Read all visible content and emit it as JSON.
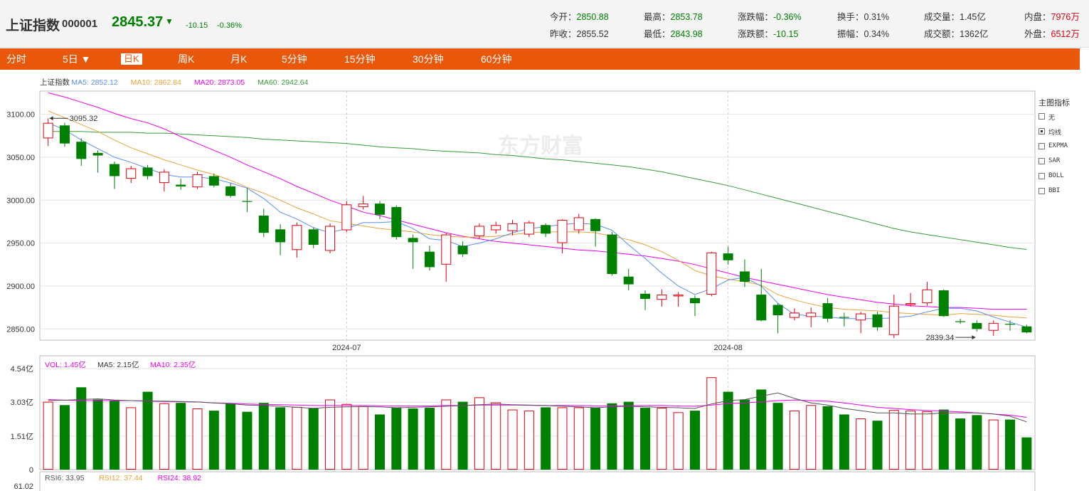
{
  "header": {
    "name": "上证指数",
    "code": "000001",
    "price": "2845.37",
    "arrow": "▼",
    "change": "-10.15",
    "change_pct": "-0.36%",
    "stats": [
      {
        "label": "今开：",
        "value": "2850.88",
        "color": "green"
      },
      {
        "label": "最高：",
        "value": "2853.78",
        "color": "green"
      },
      {
        "label": "涨跌幅：",
        "value": "-0.36%",
        "color": "green"
      },
      {
        "label": "换手：",
        "value": "0.31%",
        "color": "normal"
      },
      {
        "label": "成交量：",
        "value": "1.45亿",
        "color": "normal"
      },
      {
        "label": "内盘：",
        "value": "7976万",
        "color": "red"
      },
      {
        "label": "昨收：",
        "value": "2855.52",
        "color": "normal"
      },
      {
        "label": "最低：",
        "value": "2843.98",
        "color": "green"
      },
      {
        "label": "涨跌额：",
        "value": "-10.15",
        "color": "green"
      },
      {
        "label": "振幅：",
        "value": "0.34%",
        "color": "normal"
      },
      {
        "label": "成交额：",
        "value": "1362亿",
        "color": "normal"
      },
      {
        "label": "外盘：",
        "value": "6512万",
        "color": "red"
      }
    ]
  },
  "tabs": [
    "分时",
    "5日 ▼",
    "日K",
    "周K",
    "月K",
    "5分钟",
    "15分钟",
    "30分钟",
    "60分钟"
  ],
  "active_tab": "日K",
  "indicator_panel": {
    "title": "主图指标",
    "items": [
      {
        "label": "无",
        "checked": false
      },
      {
        "label": "均线",
        "checked": true
      },
      {
        "label": "EXPMA",
        "checked": false
      },
      {
        "label": "SAR",
        "checked": false
      },
      {
        "label": "BOLL",
        "checked": false
      },
      {
        "label": "BBI",
        "checked": false
      }
    ]
  },
  "watermark": "东方财富",
  "colors": {
    "up": "#e0000f",
    "down": "#008000",
    "ma5": "#5b8ff0",
    "ma10": "#e8a33a",
    "ma20": "#f000f0",
    "ma60": "#3a9a3a",
    "tab_bar": "#e8570a",
    "vol_ma5": "#555555"
  },
  "chart_data": [
    {
      "type": "candlestick",
      "legend": [
        "上证指数",
        "MA5: 2852.12",
        "MA10: 2862.84",
        "MA20: 2873.05",
        "MA60: 2942.64"
      ],
      "yticks": [
        "3100.00",
        "3050.00",
        "3000.00",
        "2950.00",
        "2900.00",
        "2850.00"
      ],
      "ylim": [
        2837,
        3127
      ],
      "xticks": [
        {
          "label": "2024-07",
          "index": 18.5
        },
        {
          "label": "2024-08",
          "index": 41.5
        }
      ],
      "annotations": [
        {
          "text": "3095.32",
          "index": 0,
          "value": 3095.32
        },
        {
          "text": "2839.34",
          "index": 56,
          "value": 2839.34
        }
      ],
      "ohlc": [
        [
          3072,
          3090,
          3063,
          3095.32
        ],
        [
          3087,
          3066,
          3062,
          3090
        ],
        [
          3068,
          3048,
          3040,
          3072
        ],
        [
          3055,
          3052,
          3032,
          3058
        ],
        [
          3042,
          3028,
          3013,
          3045
        ],
        [
          3025,
          3037,
          3020,
          3040
        ],
        [
          3038,
          3028,
          3024,
          3041
        ],
        [
          3020,
          3033,
          3010,
          3036
        ],
        [
          3018,
          3016,
          3012,
          3025
        ],
        [
          3015,
          3030,
          3013,
          3033
        ],
        [
          3028,
          3017,
          3015,
          3031
        ],
        [
          3016,
          3005,
          3003,
          3020
        ],
        [
          2999,
          2998,
          2986,
          3014
        ],
        [
          2982,
          2962,
          2957,
          2990
        ],
        [
          2966,
          2951,
          2936,
          2972
        ],
        [
          2942,
          2971,
          2933,
          2974
        ],
        [
          2966,
          2948,
          2944,
          2968
        ],
        [
          2941,
          2970,
          2938,
          2973
        ],
        [
          2965,
          2995,
          2963,
          2999
        ],
        [
          2992,
          2996,
          2989,
          3005
        ],
        [
          2996,
          2983,
          2978,
          2999
        ],
        [
          2992,
          2957,
          2954,
          2994
        ],
        [
          2956,
          2951,
          2920,
          2960
        ],
        [
          2940,
          2922,
          2918,
          2947
        ],
        [
          2925,
          2960,
          2905,
          2962
        ],
        [
          2947,
          2937,
          2934,
          2952
        ],
        [
          2958,
          2970,
          2955,
          2973
        ],
        [
          2965,
          2971,
          2961,
          2975
        ],
        [
          2964,
          2973,
          2959,
          2977
        ],
        [
          2960,
          2974,
          2957,
          2976
        ],
        [
          2971,
          2961,
          2957,
          2973
        ],
        [
          2950,
          2977,
          2938,
          2978
        ],
        [
          2965,
          2980,
          2961,
          2984
        ],
        [
          2978,
          2964,
          2946,
          2979
        ],
        [
          2960,
          2914,
          2912,
          2963
        ],
        [
          2911,
          2902,
          2895,
          2920
        ],
        [
          2891,
          2885,
          2872,
          2895
        ],
        [
          2884,
          2890,
          2876,
          2896
        ],
        [
          2888,
          2890,
          2876,
          2893
        ],
        [
          2886,
          2880,
          2865,
          2889
        ],
        [
          2890,
          2939,
          2888,
          2940
        ],
        [
          2938,
          2930,
          2925,
          2946
        ],
        [
          2917,
          2905,
          2899,
          2931
        ],
        [
          2890,
          2860,
          2859,
          2920
        ],
        [
          2878,
          2866,
          2845,
          2880
        ],
        [
          2863,
          2869,
          2860,
          2874
        ],
        [
          2864,
          2869,
          2852,
          2875
        ],
        [
          2880,
          2862,
          2858,
          2886
        ],
        [
          2864,
          2863,
          2853,
          2869
        ],
        [
          2860,
          2868,
          2845,
          2870
        ],
        [
          2867,
          2852,
          2848,
          2870
        ],
        [
          2843,
          2877,
          2839.34,
          2890
        ],
        [
          2878,
          2880,
          2876,
          2892
        ],
        [
          2880,
          2896,
          2877,
          2905
        ],
        [
          2895,
          2865,
          2864,
          2896
        ],
        [
          2859,
          2858,
          2856,
          2862
        ],
        [
          2857,
          2850,
          2847,
          2860
        ],
        [
          2848,
          2857,
          2842,
          2860
        ],
        [
          2856,
          2855,
          2848,
          2860
        ],
        [
          2853,
          2846,
          2845,
          2855
        ]
      ],
      "ma5": [
        3090,
        3082,
        3070,
        3060,
        3050,
        3044,
        3037,
        3030,
        3027,
        3027,
        3025,
        3020,
        3014,
        3002,
        2986,
        2978,
        2968,
        2962,
        2967,
        2974,
        2974,
        2975,
        2967,
        2955,
        2953,
        2946,
        2950,
        2955,
        2962,
        2967,
        2969,
        2972,
        2973,
        2972,
        2965,
        2948,
        2932,
        2915,
        2900,
        2890,
        2897,
        2907,
        2910,
        2900,
        2880,
        2867,
        2865,
        2864,
        2862,
        2862,
        2862,
        2863,
        2865,
        2870,
        2874,
        2874,
        2871,
        2864,
        2858,
        2852.12
      ],
      "ma10": [
        3104,
        3096,
        3088,
        3080,
        3070,
        3061,
        3054,
        3047,
        3041,
        3035,
        3030,
        3023,
        3015,
        3008,
        3000,
        2991,
        2984,
        2976,
        2973,
        2970,
        2967,
        2965,
        2963,
        2960,
        2958,
        2957,
        2957,
        2958,
        2960,
        2962,
        2963,
        2963,
        2963,
        2962,
        2958,
        2954,
        2948,
        2940,
        2930,
        2918,
        2912,
        2908,
        2905,
        2901,
        2890,
        2884,
        2879,
        2875,
        2873,
        2872,
        2871,
        2869,
        2868,
        2867,
        2866,
        2868,
        2867,
        2866,
        2864,
        2862.84
      ],
      "ma20": [
        3125,
        3120,
        3114,
        3108,
        3101,
        3095,
        3090,
        3083,
        3074,
        3066,
        3058,
        3050,
        3041,
        3033,
        3025,
        3016,
        3008,
        3000,
        2993,
        2986,
        2982,
        2977,
        2972,
        2967,
        2962,
        2958,
        2955,
        2952,
        2950,
        2948,
        2946,
        2944,
        2942,
        2941,
        2939,
        2937,
        2935,
        2932,
        2929,
        2925,
        2920,
        2915,
        2910,
        2906,
        2902,
        2898,
        2894,
        2890,
        2887,
        2884,
        2881,
        2879,
        2877,
        2876,
        2875,
        2875,
        2874,
        2873,
        2873,
        2873.05
      ],
      "ma60": [
        3080,
        3080,
        3080,
        3079,
        3079,
        3079,
        3078,
        3078,
        3077,
        3076,
        3075,
        3074,
        3073,
        3071,
        3070,
        3069,
        3068,
        3067,
        3066,
        3064,
        3062,
        3061,
        3060,
        3058,
        3057,
        3056,
        3055,
        3053,
        3052,
        3050,
        3048,
        3047,
        3045,
        3043,
        3041,
        3039,
        3036,
        3033,
        3029,
        3025,
        3021,
        3017,
        3012,
        3007,
        3002,
        2997,
        2992,
        2987,
        2982,
        2977,
        2972,
        2967,
        2963,
        2960,
        2957,
        2954,
        2951,
        2948,
        2945,
        2942.64
      ]
    },
    {
      "type": "bar",
      "legend": [
        "VOL: 1.45亿",
        "MA5: 2.15亿",
        "MA10: 2.35亿"
      ],
      "yticks": [
        "4.54亿",
        "3.03亿",
        "1.51亿",
        "0"
      ],
      "ylim": [
        0,
        4.54
      ],
      "unit": "亿",
      "volume": [
        3.05,
        2.9,
        3.7,
        3.15,
        3.1,
        2.8,
        3.5,
        2.98,
        3.0,
        2.75,
        2.65,
        2.98,
        2.6,
        3.0,
        2.8,
        2.82,
        2.75,
        3.15,
        2.95,
        2.85,
        2.48,
        2.78,
        2.75,
        2.78,
        3.15,
        3.05,
        3.25,
        3.02,
        2.7,
        2.65,
        2.8,
        2.8,
        2.8,
        2.78,
        2.98,
        3.05,
        2.78,
        2.78,
        2.58,
        2.65,
        4.15,
        3.5,
        3.15,
        3.6,
        3.0,
        2.65,
        2.9,
        2.85,
        2.48,
        2.3,
        2.2,
        2.68,
        2.65,
        2.62,
        2.7,
        2.3,
        2.45,
        2.25,
        2.25,
        1.45
      ],
      "vol_ma5": [
        3.1,
        3.12,
        3.15,
        3.18,
        3.13,
        3.1,
        3.09,
        3.08,
        3.06,
        3.04,
        3.0,
        2.96,
        2.9,
        2.88,
        2.85,
        2.8,
        2.76,
        2.8,
        2.82,
        2.83,
        2.82,
        2.78,
        2.8,
        2.82,
        2.85,
        2.88,
        2.92,
        2.95,
        2.92,
        2.9,
        2.88,
        2.85,
        2.82,
        2.78,
        2.82,
        2.85,
        2.82,
        2.8,
        2.78,
        2.75,
        2.95,
        3.1,
        3.15,
        3.3,
        3.45,
        3.2,
        3.0,
        2.9,
        2.75,
        2.65,
        2.55,
        2.55,
        2.5,
        2.5,
        2.55,
        2.55,
        2.55,
        2.5,
        2.4,
        2.15
      ],
      "vol_ma10": [
        3.15,
        3.12,
        3.1,
        3.1,
        3.1,
        3.1,
        3.08,
        3.06,
        3.05,
        3.04,
        3.0,
        2.98,
        2.95,
        2.93,
        2.92,
        2.9,
        2.88,
        2.88,
        2.88,
        2.88,
        2.87,
        2.86,
        2.86,
        2.86,
        2.88,
        2.88,
        2.9,
        2.9,
        2.9,
        2.89,
        2.88,
        2.88,
        2.88,
        2.86,
        2.87,
        2.87,
        2.88,
        2.88,
        2.86,
        2.85,
        2.9,
        2.97,
        3.0,
        3.05,
        3.1,
        3.13,
        3.1,
        3.08,
        3.0,
        2.9,
        2.8,
        2.75,
        2.7,
        2.66,
        2.63,
        2.6,
        2.55,
        2.5,
        2.45,
        2.35
      ]
    },
    {
      "type": "line",
      "legend": [
        "RSI6: 33.95",
        "RSI12: 37.44",
        "RSI24: 38.92"
      ],
      "yticks": [
        "61.02"
      ]
    }
  ]
}
